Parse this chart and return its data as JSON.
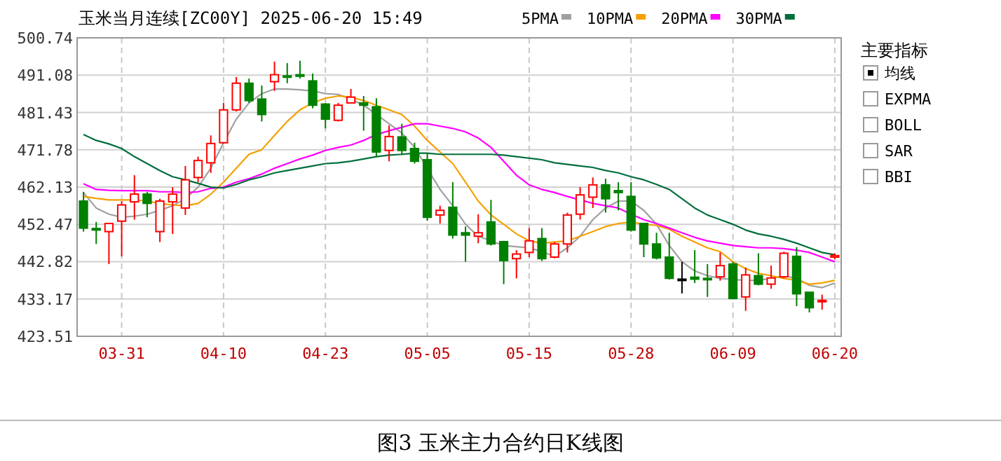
{
  "chart_data": {
    "type": "candlestick",
    "title": "玉米当月连续[ZC00Y] 2025-06-20 15:49",
    "subtitle": "图3 玉米主力合约日K线图",
    "categories": [
      null,
      null,
      null,
      "03-31",
      null,
      null,
      null,
      null,
      null,
      null,
      null,
      "04-10",
      null,
      null,
      null,
      null,
      null,
      null,
      null,
      "04-23",
      null,
      null,
      null,
      null,
      null,
      null,
      null,
      "05-05",
      null,
      null,
      null,
      null,
      null,
      null,
      null,
      "05-15",
      null,
      null,
      null,
      null,
      null,
      null,
      null,
      "05-28",
      null,
      null,
      null,
      null,
      null,
      null,
      null,
      "06-09",
      null,
      null,
      null,
      null,
      null,
      null,
      null,
      "06-20"
    ],
    "ohlc": [
      [
        458.5,
        460.9,
        450.6,
        451.5
      ],
      [
        451.4,
        453.1,
        447.4,
        451.0
      ],
      [
        450.6,
        452.7,
        442.2,
        452.7
      ],
      [
        453.3,
        458.5,
        444.2,
        457.5
      ],
      [
        458.3,
        465.2,
        453.7,
        460.3
      ],
      [
        460.3,
        460.9,
        454.3,
        457.9
      ],
      [
        450.6,
        459.1,
        447.9,
        458.5
      ],
      [
        458.3,
        462.1,
        450.0,
        460.3
      ],
      [
        456.7,
        467.6,
        454.9,
        464.0
      ],
      [
        464.6,
        470.0,
        463.4,
        469.0
      ],
      [
        468.4,
        475.5,
        465.8,
        473.4
      ],
      [
        473.6,
        483.9,
        473.3,
        482.1
      ],
      [
        482.1,
        490.6,
        481.7,
        489.0
      ],
      [
        489.0,
        490.2,
        483.9,
        484.5
      ],
      [
        484.9,
        488.4,
        479.1,
        480.9
      ],
      [
        489.4,
        494.6,
        487.0,
        491.2
      ],
      [
        490.9,
        494.2,
        489.0,
        490.7
      ],
      [
        491.2,
        494.8,
        490.2,
        490.8
      ],
      [
        489.6,
        491.5,
        482.5,
        483.3
      ],
      [
        483.6,
        483.9,
        477.3,
        479.7
      ],
      [
        479.4,
        483.9,
        479.1,
        483.3
      ],
      [
        483.9,
        487.5,
        483.9,
        485.4
      ],
      [
        483.9,
        485.7,
        476.7,
        483.3
      ],
      [
        482.9,
        485.1,
        470.0,
        471.2
      ],
      [
        471.6,
        478.1,
        468.8,
        475.2
      ],
      [
        475.1,
        478.5,
        470.4,
        471.6
      ],
      [
        472.1,
        473.6,
        468.2,
        468.8
      ],
      [
        469.2,
        470.8,
        453.4,
        454.3
      ],
      [
        454.9,
        457.3,
        452.7,
        456.1
      ],
      [
        456.9,
        463.4,
        448.8,
        449.7
      ],
      [
        450.3,
        451.9,
        442.8,
        449.7
      ],
      [
        449.4,
        455.1,
        447.6,
        450.3
      ],
      [
        453.1,
        458.8,
        447.0,
        447.4
      ],
      [
        448.0,
        448.2,
        437.0,
        443.1
      ],
      [
        443.6,
        445.8,
        438.5,
        444.8
      ],
      [
        445.2,
        451.5,
        444.0,
        448.2
      ],
      [
        448.8,
        451.5,
        443.0,
        443.6
      ],
      [
        444.0,
        447.9,
        443.7,
        447.4
      ],
      [
        447.4,
        455.5,
        445.2,
        454.9
      ],
      [
        455.1,
        462.1,
        453.7,
        460.1
      ],
      [
        459.5,
        464.6,
        456.7,
        462.7
      ],
      [
        462.7,
        464.3,
        455.5,
        459.1
      ],
      [
        461.2,
        463.4,
        456.1,
        460.7
      ],
      [
        459.7,
        463.4,
        450.6,
        451.0
      ],
      [
        452.7,
        452.7,
        444.0,
        447.4
      ],
      [
        447.4,
        450.3,
        443.4,
        443.8
      ],
      [
        444.0,
        450.3,
        438.2,
        438.5
      ],
      [
        438.3,
        442.8,
        434.6,
        438.3
      ],
      [
        438.8,
        445.8,
        437.3,
        438.3
      ],
      [
        438.5,
        442.2,
        433.7,
        438.2
      ],
      [
        438.9,
        445.2,
        437.9,
        441.8
      ],
      [
        442.2,
        442.8,
        433.1,
        433.3
      ],
      [
        433.7,
        441.3,
        430.1,
        439.4
      ],
      [
        439.2,
        445.0,
        436.7,
        437.0
      ],
      [
        437.0,
        441.8,
        435.8,
        438.6
      ],
      [
        438.9,
        445.4,
        438.5,
        445.0
      ],
      [
        444.2,
        446.6,
        431.3,
        434.5
      ],
      [
        434.9,
        434.9,
        429.7,
        430.9
      ],
      [
        432.5,
        434.3,
        430.4,
        432.8
      ],
      [
        444.0,
        445.0,
        443.4,
        444.4
      ]
    ],
    "colors": [
      "#008000",
      "#008000",
      "#ff0000",
      "#ff0000",
      "#ff0000",
      "#008000",
      "#ff0000",
      "#ff0000",
      "#ff0000",
      "#ff0000",
      "#ff0000",
      "#ff0000",
      "#ff0000",
      "#008000",
      "#008000",
      "#ff0000",
      "#008000",
      "#008000",
      "#008000",
      "#008000",
      "#ff0000",
      "#ff0000",
      "#008000",
      "#008000",
      "#ff0000",
      "#008000",
      "#008000",
      "#008000",
      "#ff0000",
      "#008000",
      "#008000",
      "#ff0000",
      "#008000",
      "#008000",
      "#ff0000",
      "#ff0000",
      "#008000",
      "#ff0000",
      "#ff0000",
      "#ff0000",
      "#ff0000",
      "#008000",
      "#008000",
      "#008000",
      "#008000",
      "#008000",
      "#008000",
      "#000000",
      "#008000",
      "#008000",
      "#ff0000",
      "#008000",
      "#ff0000",
      "#008000",
      "#ff0000",
      "#ff0000",
      "#008000",
      "#008000",
      "#ff0000",
      "#ff0000"
    ],
    "series": [
      {
        "name": "5PMA",
        "type": "line",
        "color": "#a0a0a0",
        "values": [
          460.7,
          456.7,
          455.1,
          454.3,
          454.6,
          455.1,
          456.1,
          457.3,
          459.1,
          462.1,
          467.0,
          473.6,
          479.7,
          483.9,
          486.3,
          487.5,
          487.5,
          487.3,
          487.0,
          486.3,
          486.1,
          484.9,
          483.3,
          480.9,
          478.5,
          476.1,
          472.4,
          null,
          461.5,
          457.3,
          452.5,
          449.4,
          448.2,
          447.0,
          446.7,
          446.4,
          445.4,
          444.2,
          446.4,
          449.4,
          453.7,
          456.7,
          458.5,
          458.5,
          456.1,
          452.5,
          447.0,
          442.8,
          440.4,
          439.2,
          438.5,
          438.2,
          438.0,
          438.0,
          438.5,
          439.2,
          438.5,
          436.7,
          436.1,
          437.3
        ]
      },
      {
        "name": "10PMA",
        "type": "line",
        "color": "#f5a000",
        "values": [
          459.7,
          459.2,
          458.8,
          458.8,
          458.8,
          458.5,
          457.9,
          457.5,
          457.3,
          457.9,
          460.3,
          463.4,
          467.0,
          470.6,
          471.8,
          475.5,
          479.1,
          482.1,
          483.9,
          485.1,
          485.7,
          485.4,
          484.5,
          483.3,
          482.1,
          480.9,
          477.9,
          474.2,
          471.2,
          468.2,
          463.4,
          458.5,
          454.9,
          452.5,
          450.0,
          448.2,
          447.6,
          447.9,
          448.2,
          449.4,
          450.6,
          451.9,
          452.7,
          453.1,
          452.5,
          452.2,
          451.2,
          449.4,
          447.9,
          446.4,
          445.4,
          442.8,
          441.0,
          439.8,
          439.2,
          438.5,
          438.0,
          437.0,
          437.3,
          438.0
        ]
      },
      {
        "name": "20PMA",
        "type": "line",
        "color": "#ff00ff",
        "values": [
          463.0,
          461.5,
          461.3,
          461.2,
          461.2,
          461.2,
          460.9,
          460.9,
          460.7,
          460.9,
          461.8,
          462.1,
          463.4,
          464.3,
          465.5,
          467.0,
          468.2,
          469.4,
          470.4,
          471.6,
          472.4,
          473.0,
          474.2,
          475.7,
          476.7,
          477.6,
          478.5,
          478.5,
          477.9,
          477.3,
          476.4,
          474.8,
          472.4,
          468.8,
          465.2,
          462.7,
          461.5,
          460.7,
          459.7,
          458.8,
          457.9,
          457.3,
          456.7,
          455.1,
          453.7,
          452.7,
          451.5,
          450.3,
          449.1,
          448.2,
          447.6,
          447.0,
          446.7,
          446.4,
          446.4,
          446.2,
          445.8,
          445.2,
          444.0,
          442.8
        ]
      },
      {
        "name": "30PMA",
        "type": "line",
        "color": "#006e3c",
        "values": [
          475.7,
          474.2,
          473.3,
          472.1,
          470.0,
          468.2,
          466.4,
          464.8,
          464.0,
          463.1,
          462.1,
          461.9,
          462.8,
          464.0,
          464.8,
          465.8,
          466.4,
          467.0,
          467.6,
          468.2,
          468.4,
          468.8,
          469.4,
          470.0,
          470.4,
          470.6,
          470.9,
          470.9,
          470.6,
          470.6,
          470.6,
          470.6,
          470.6,
          470.4,
          470.0,
          469.6,
          469.2,
          468.4,
          468.0,
          467.6,
          467.2,
          466.4,
          465.8,
          464.8,
          464.0,
          462.8,
          461.5,
          459.1,
          456.7,
          454.9,
          453.7,
          452.5,
          451.0,
          450.0,
          449.4,
          448.6,
          447.6,
          446.4,
          445.2,
          444.6
        ]
      }
    ],
    "ylim": [
      423.51,
      500.74
    ],
    "yticks": [
      423.51,
      433.17,
      442.82,
      452.47,
      462.13,
      471.78,
      481.43,
      491.08,
      500.74
    ],
    "grid": true,
    "legend": "top",
    "annotations": [
      "主要指标",
      "均线",
      "EXPMA",
      "BOLL",
      "SAR",
      "BBI"
    ]
  }
}
